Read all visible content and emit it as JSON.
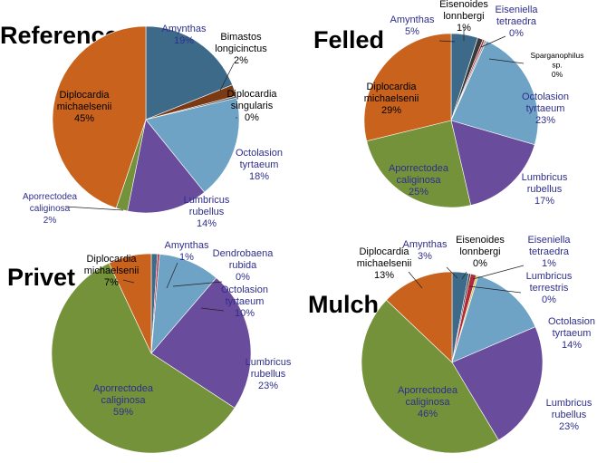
{
  "colors": {
    "Amynthas": "#3e6a8a",
    "Bimastos longicinctus": "#7a3a14",
    "Diplocardia singularis": "#5a5a5a",
    "Octolasion tyrtaeum": "#6fa3c6",
    "Lumbricus rubellus": "#6a4c9c",
    "Aporrectodea caliginosa": "#74923a",
    "Diplocardia michaelsenii": "#c8621c",
    "Eisenoides lonnbergi": "#3a3a3a",
    "Eiseniella tetraedra": "#b02a3a",
    "Sparganophilus sp.": "#9a9a9a",
    "Dendrobaena rubida": "#b02a3a",
    "Lumbricus terrestris": "#cfc24a",
    "label_blue": "#2e2e8c",
    "label_black": "#000000"
  },
  "chart_data": [
    {
      "type": "pie",
      "title": "Reference",
      "slices": [
        {
          "name": "Amynthas",
          "display": [
            "Amynthas",
            "19%"
          ],
          "value": 19,
          "label_color": "label_blue"
        },
        {
          "name": "Bimastos longicinctus",
          "display": [
            "Bimastos",
            "longicinctus",
            "2%"
          ],
          "value": 2,
          "label_color": "label_black"
        },
        {
          "name": "Diplocardia singularis",
          "display": [
            "Diplocardia",
            "singularis",
            "0%"
          ],
          "value": 0,
          "label_color": "label_black"
        },
        {
          "name": "Octolasion tyrtaeum",
          "display": [
            "Octolasion",
            "tyrtaeum",
            "18%"
          ],
          "value": 18,
          "label_color": "label_blue"
        },
        {
          "name": "Lumbricus rubellus",
          "display": [
            "Lumbricus",
            "rubellus",
            "14%"
          ],
          "value": 14,
          "label_color": "label_blue"
        },
        {
          "name": "Aporrectodea caliginosa",
          "display": [
            "Aporrectodea",
            "caliginosa",
            "2%"
          ],
          "value": 2,
          "label_color": "label_blue"
        },
        {
          "name": "Diplocardia michaelsenii",
          "display": [
            "Diplocardia",
            "michaelsenii",
            "45%"
          ],
          "value": 45,
          "label_color": "label_black"
        }
      ]
    },
    {
      "type": "pie",
      "title": "Felled",
      "slices": [
        {
          "name": "Amynthas",
          "display": [
            "Amynthas",
            "5%"
          ],
          "value": 5,
          "label_color": "label_blue"
        },
        {
          "name": "Eisenoides lonnbergi",
          "display": [
            "Eisenoides",
            "lonnbergi",
            "1%"
          ],
          "value": 1,
          "label_color": "label_black"
        },
        {
          "name": "Eiseniella tetraedra",
          "display": [
            "Eiseniella",
            "tetraedra",
            "0%"
          ],
          "value": 0,
          "label_color": "label_blue"
        },
        {
          "name": "Sparganophilus sp.",
          "display": [
            "Sparganophilus",
            "sp.",
            "0%"
          ],
          "value": 0,
          "label_color": "label_black"
        },
        {
          "name": "Octolasion tyrtaeum",
          "display": [
            "Octolasion",
            "tyrtaeum",
            "23%"
          ],
          "value": 23,
          "label_color": "label_blue"
        },
        {
          "name": "Lumbricus rubellus",
          "display": [
            "Lumbricus",
            "rubellus",
            "17%"
          ],
          "value": 17,
          "label_color": "label_blue"
        },
        {
          "name": "Aporrectodea caliginosa",
          "display": [
            "Aporrectodea",
            "caliginosa",
            "25%"
          ],
          "value": 25,
          "label_color": "label_blue"
        },
        {
          "name": "Diplocardia michaelsenii",
          "display": [
            "Diplocardia",
            "michaelsenii",
            "29%"
          ],
          "value": 29,
          "label_color": "label_black"
        }
      ]
    },
    {
      "type": "pie",
      "title": "Privet",
      "slices": [
        {
          "name": "Amynthas",
          "display": [
            "Amynthas",
            "1%"
          ],
          "value": 1,
          "label_color": "label_blue"
        },
        {
          "name": "Dendrobaena rubida",
          "display": [
            "Dendrobaena",
            "rubida",
            "0%"
          ],
          "value": 0,
          "label_color": "label_blue"
        },
        {
          "name": "Octolasion tyrtaeum",
          "display": [
            "Octolasion",
            "tyrtaeum",
            "10%"
          ],
          "value": 10,
          "label_color": "label_blue"
        },
        {
          "name": "Lumbricus rubellus",
          "display": [
            "Lumbricus",
            "rubellus",
            "23%"
          ],
          "value": 23,
          "label_color": "label_blue"
        },
        {
          "name": "Aporrectodea caliginosa",
          "display": [
            "Aporrectodea",
            "caliginosa",
            "59%"
          ],
          "value": 59,
          "label_color": "label_blue"
        },
        {
          "name": "Diplocardia michaelsenii",
          "display": [
            "Diplocardia",
            "michaelsenii",
            "7%"
          ],
          "value": 7,
          "label_color": "label_black"
        }
      ]
    },
    {
      "type": "pie",
      "title": "Mulch",
      "slices": [
        {
          "name": "Amynthas",
          "display": [
            "Amynthas",
            "3%"
          ],
          "value": 3,
          "label_color": "label_blue"
        },
        {
          "name": "Eisenoides lonnbergi",
          "display": [
            "Eisenoides",
            "lonnbergi",
            "0%"
          ],
          "value": 0,
          "label_color": "label_black"
        },
        {
          "name": "Eiseniella tetraedra",
          "display": [
            "Eiseniella",
            "tetraedra",
            "1%"
          ],
          "value": 1,
          "label_color": "label_blue"
        },
        {
          "name": "Lumbricus terrestris",
          "display": [
            "Lumbricus",
            "terrestris",
            "0%"
          ],
          "value": 0,
          "label_color": "label_blue"
        },
        {
          "name": "Octolasion tyrtaeum",
          "display": [
            "Octolasion",
            "tyrtaeum",
            "14%"
          ],
          "value": 14,
          "label_color": "label_blue"
        },
        {
          "name": "Lumbricus rubellus",
          "display": [
            "Lumbricus",
            "rubellus",
            "23%"
          ],
          "value": 23,
          "label_color": "label_blue"
        },
        {
          "name": "Aporrectodea caliginosa",
          "display": [
            "Aporrectodea",
            "caliginosa",
            "46%"
          ],
          "value": 46,
          "label_color": "label_blue"
        },
        {
          "name": "Diplocardia michaelsenii",
          "display": [
            "Diplocardia",
            "michaelsenii",
            "13%"
          ],
          "value": 13,
          "label_color": "label_black"
        }
      ]
    }
  ]
}
